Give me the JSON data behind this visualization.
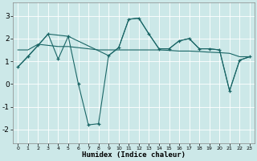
{
  "xlabel": "Humidex (Indice chaleur)",
  "bg_color": "#cce8e8",
  "line_color": "#1a6666",
  "grid_color": "#b8d8d8",
  "xlim": [
    -0.5,
    23.5
  ],
  "ylim": [
    -2.6,
    3.6
  ],
  "xticks": [
    0,
    1,
    2,
    3,
    4,
    5,
    6,
    7,
    8,
    9,
    10,
    11,
    12,
    13,
    14,
    15,
    16,
    17,
    18,
    19,
    20,
    21,
    22,
    23
  ],
  "yticks": [
    -2,
    -1,
    0,
    1,
    2,
    3
  ],
  "line1_x": [
    0,
    1,
    2,
    3,
    4,
    5,
    6,
    7,
    8,
    9,
    10,
    11,
    12,
    13,
    14,
    15,
    16,
    17,
    18,
    19,
    20,
    21,
    22,
    23
  ],
  "line1_y": [
    0.75,
    1.2,
    1.7,
    2.2,
    1.1,
    2.1,
    0.0,
    -1.8,
    -1.75,
    1.25,
    1.6,
    2.85,
    2.9,
    2.2,
    1.55,
    1.55,
    1.9,
    2.0,
    1.55,
    1.55,
    1.5,
    -0.3,
    1.05,
    1.2
  ],
  "line2_x": [
    0,
    1,
    2,
    3,
    4,
    5,
    6,
    7,
    8,
    9,
    10,
    11,
    12,
    13,
    14,
    15,
    16,
    17,
    18,
    19,
    20,
    21,
    22,
    23
  ],
  "line2_y": [
    1.5,
    1.5,
    1.75,
    1.7,
    1.65,
    1.65,
    1.6,
    1.55,
    1.5,
    1.5,
    1.5,
    1.5,
    1.5,
    1.5,
    1.5,
    1.48,
    1.45,
    1.45,
    1.43,
    1.4,
    1.38,
    1.35,
    1.2,
    1.2
  ],
  "line3_x": [
    0,
    2,
    3,
    5,
    9,
    10,
    11,
    12,
    13,
    14,
    15,
    16,
    17,
    18,
    19,
    20,
    21,
    22,
    23
  ],
  "line3_y": [
    0.75,
    1.7,
    2.2,
    2.1,
    1.25,
    1.6,
    2.85,
    2.9,
    2.2,
    1.55,
    1.55,
    1.9,
    2.0,
    1.55,
    1.55,
    1.5,
    -0.3,
    1.05,
    1.2
  ]
}
